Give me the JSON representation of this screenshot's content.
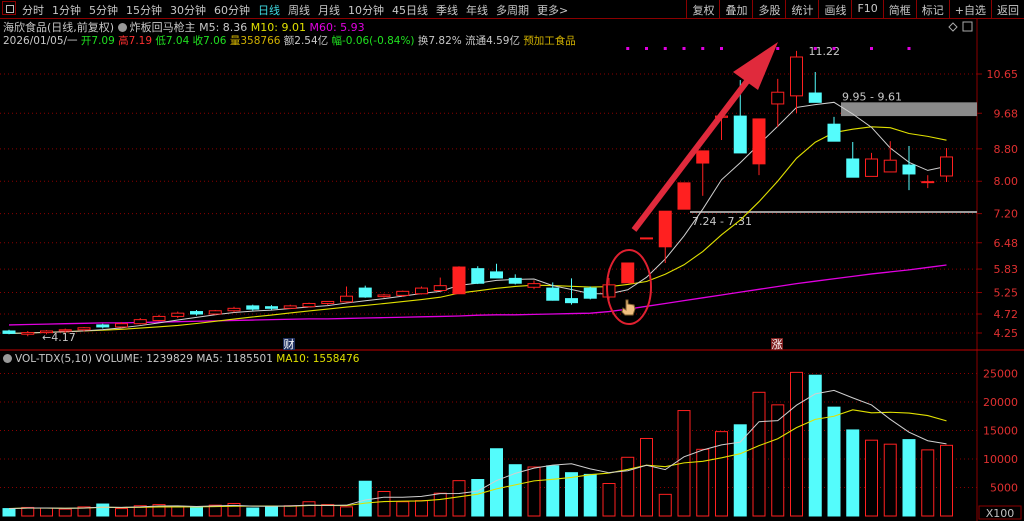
{
  "toolbar": {
    "periods": [
      "分时",
      "1分钟",
      "5分钟",
      "15分钟",
      "30分钟",
      "60分钟",
      "日线",
      "周线",
      "月线",
      "10分钟",
      "45日线",
      "季线",
      "年线",
      "多周期",
      "更多>"
    ],
    "active_period": "日线",
    "tools": [
      "复权",
      "叠加",
      "多股",
      "统计",
      "画线",
      "F10",
      "简框",
      "标记",
      "+自选",
      "返回"
    ]
  },
  "header": {
    "stock": "海欣食品(日线,前复权)",
    "indicator": "炸板回马枪主",
    "m5": "M5: 8.36",
    "m10": "M10: 9.01",
    "m60": "M60: 5.93"
  },
  "quote": {
    "date": "2026/01/05/一",
    "open_label": "开",
    "open": "7.09",
    "high_label": "高",
    "high": "7.19",
    "low_label": "低",
    "low": "7.04",
    "close_label": "收",
    "close": "7.06",
    "vol_label": "量",
    "vol": "358766",
    "amount": "额2.54亿",
    "change_label": "幅",
    "change": "-0.06(-0.84%)",
    "turnover": "换7.82%",
    "float": "流通4.59亿",
    "sector": "预加工食品"
  },
  "volume_header": {
    "name": "VOL-TDX(5,10)",
    "volume": "VOLUME: 1239829",
    "ma5": "MA5: 1185501",
    "ma10": "MA10: 1558476"
  },
  "colors": {
    "up": "#ff2020",
    "down": "#54fcfc",
    "ma5": "#d0d0d0",
    "ma10": "#e0e000",
    "ma60": "#e000e0",
    "grid": "#8b0000",
    "signal": "#e000e0"
  },
  "chart_data": [
    {
      "type": "candlestick",
      "price_axis": {
        "ticks": [
          "10.65",
          "9.68",
          "8.80",
          "8.00",
          "7.20",
          "6.48",
          "5.83",
          "5.25",
          "4.72",
          "4.25"
        ],
        "range": [
          4.0,
          11.4
        ]
      },
      "candles": [
        [
          4.3,
          4.33,
          4.22,
          4.24
        ],
        [
          4.22,
          4.3,
          4.17,
          4.26
        ],
        [
          4.26,
          4.32,
          4.22,
          4.3
        ],
        [
          4.3,
          4.36,
          4.26,
          4.33
        ],
        [
          4.33,
          4.4,
          4.29,
          4.38
        ],
        [
          4.45,
          4.48,
          4.36,
          4.4
        ],
        [
          4.4,
          4.52,
          4.38,
          4.48
        ],
        [
          4.48,
          4.62,
          4.46,
          4.58
        ],
        [
          4.56,
          4.7,
          4.54,
          4.66
        ],
        [
          4.66,
          4.78,
          4.62,
          4.74
        ],
        [
          4.78,
          4.82,
          4.68,
          4.72
        ],
        [
          4.72,
          4.82,
          4.7,
          4.8
        ],
        [
          4.8,
          4.9,
          4.76,
          4.86
        ],
        [
          4.92,
          4.95,
          4.8,
          4.84
        ],
        [
          4.9,
          4.94,
          4.82,
          4.86
        ],
        [
          4.86,
          4.95,
          4.84,
          4.92
        ],
        [
          4.9,
          5.0,
          4.88,
          4.98
        ],
        [
          4.98,
          5.04,
          4.94,
          5.03
        ],
        [
          5.02,
          5.4,
          5.0,
          5.16
        ],
        [
          5.36,
          5.42,
          5.12,
          5.14
        ],
        [
          5.15,
          5.22,
          5.12,
          5.19
        ],
        [
          5.18,
          5.3,
          5.14,
          5.28
        ],
        [
          5.22,
          5.4,
          5.2,
          5.36
        ],
        [
          5.3,
          5.62,
          5.28,
          5.42
        ],
        [
          5.22,
          5.9,
          5.22,
          5.88
        ],
        [
          5.84,
          5.9,
          5.46,
          5.48
        ],
        [
          5.76,
          5.96,
          5.61,
          5.61
        ],
        [
          5.6,
          5.7,
          5.45,
          5.48
        ],
        [
          5.38,
          5.55,
          5.33,
          5.47
        ],
        [
          5.36,
          5.5,
          5.05,
          5.06
        ],
        [
          5.1,
          5.6,
          4.95,
          5.0
        ],
        [
          5.36,
          5.4,
          5.08,
          5.11
        ],
        [
          5.14,
          5.61,
          5.02,
          5.44
        ],
        [
          5.49,
          5.98,
          5.49,
          5.98
        ],
        [
          6.6,
          6.6,
          6.6,
          6.6
        ],
        [
          6.38,
          7.26,
          5.98,
          7.26
        ],
        [
          7.31,
          7.96,
          7.31,
          7.96
        ],
        [
          8.45,
          8.75,
          7.64,
          8.75
        ],
        [
          9.58,
          9.61,
          9.02,
          9.61
        ],
        [
          9.61,
          10.5,
          8.7,
          8.7
        ],
        [
          8.43,
          9.54,
          8.15,
          9.54
        ],
        [
          9.91,
          10.53,
          9.34,
          10.2
        ],
        [
          10.11,
          11.22,
          9.68,
          11.07
        ],
        [
          10.18,
          10.7,
          9.95,
          9.95
        ],
        [
          9.41,
          9.59,
          8.99,
          8.99
        ],
        [
          8.55,
          8.97,
          8.1,
          8.1
        ],
        [
          8.12,
          8.7,
          8.12,
          8.55
        ],
        [
          8.23,
          8.99,
          8.23,
          8.52
        ],
        [
          8.4,
          8.87,
          7.78,
          8.18
        ],
        [
          7.98,
          8.15,
          7.83,
          7.99
        ],
        [
          8.13,
          8.82,
          7.98,
          8.6
        ]
      ],
      "ma60": [
        4.45,
        4.46,
        4.47,
        4.48,
        4.49,
        4.5,
        4.5,
        4.51,
        4.52,
        4.53,
        4.54,
        4.55,
        4.56,
        4.57,
        4.58,
        4.59,
        4.6,
        4.6,
        4.61,
        4.62,
        4.63,
        4.64,
        4.65,
        4.66,
        4.67,
        4.69,
        4.7,
        4.7,
        4.71,
        4.72,
        4.73,
        4.74,
        4.78,
        4.84,
        4.91,
        4.98,
        5.05,
        5.12,
        5.19,
        5.26,
        5.33,
        5.4,
        5.47,
        5.53,
        5.59,
        5.65,
        5.71,
        5.76,
        5.81,
        5.87,
        5.93
      ],
      "annotations": {
        "high": "11.22",
        "low": "←4.17",
        "resistance": "9.95 - 9.61",
        "support": "7.24 - 7.31",
        "marker_finance": "财",
        "marker_limit_up": "涨"
      },
      "signal_days": [
        33,
        34,
        35,
        36,
        37,
        38,
        41,
        43,
        44,
        46,
        48
      ]
    },
    {
      "type": "bar",
      "volume_axis": {
        "ticks": [
          "25000",
          "20000",
          "15000",
          "10000",
          "5000"
        ],
        "unit": "X100",
        "range": [
          0,
          27000
        ]
      },
      "volumes": [
        1300,
        1500,
        1400,
        1200,
        1600,
        2100,
        1300,
        1800,
        2000,
        1700,
        1500,
        1900,
        2200,
        1400,
        1600,
        1800,
        2500,
        2000,
        1600,
        6100,
        4300,
        2500,
        2700,
        4000,
        6200,
        6400,
        11800,
        9000,
        8600,
        8800,
        7600,
        7300,
        5700,
        10300,
        13600,
        3800,
        18500,
        11700,
        14800,
        16000,
        21700,
        19500,
        25200,
        24700,
        19100,
        15100,
        13300,
        12600,
        13400,
        11600,
        12400
      ]
    }
  ]
}
